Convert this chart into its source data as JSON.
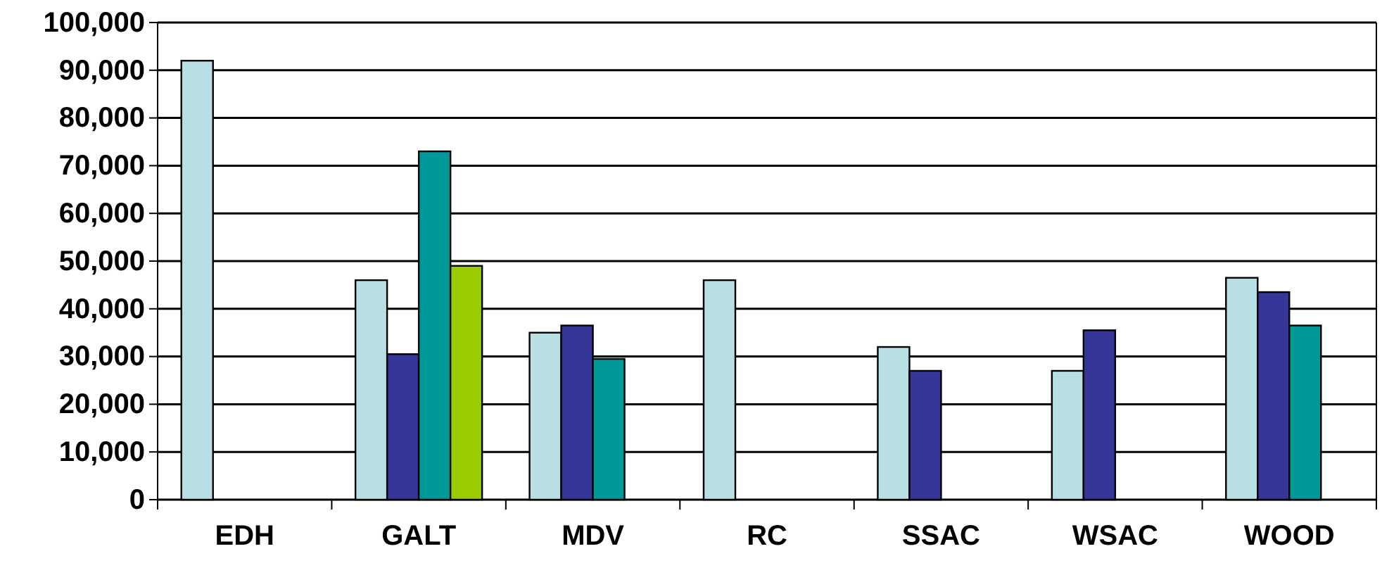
{
  "chart_data": {
    "type": "bar",
    "categories": [
      "EDH",
      "GALT",
      "MDV",
      "RC",
      "SSAC",
      "WSAC",
      "WOOD"
    ],
    "series": [
      {
        "color": "#b8e0e4",
        "values": [
          92000,
          46000,
          35000,
          46000,
          32000,
          27000,
          46500
        ]
      },
      {
        "color": "#363699",
        "values": [
          null,
          30500,
          36500,
          null,
          27000,
          35500,
          43500
        ]
      },
      {
        "color": "#009999",
        "values": [
          null,
          73000,
          29500,
          null,
          null,
          null,
          36500
        ]
      },
      {
        "color": "#99cc00",
        "values": [
          null,
          49000,
          null,
          null,
          null,
          null,
          null
        ]
      }
    ],
    "ylim": [
      0,
      100000
    ],
    "yticks": [
      {
        "value": 0,
        "label": "0"
      },
      {
        "value": 10000,
        "label": "10,000"
      },
      {
        "value": 20000,
        "label": "20,000"
      },
      {
        "value": 30000,
        "label": "30,000"
      },
      {
        "value": 40000,
        "label": "40,000"
      },
      {
        "value": 50000,
        "label": "50,000"
      },
      {
        "value": 60000,
        "label": "60,000"
      },
      {
        "value": 70000,
        "label": "70,000"
      },
      {
        "value": 80000,
        "label": "80,000"
      },
      {
        "value": 90000,
        "label": "90,000"
      },
      {
        "value": 100000,
        "label": "100,000"
      }
    ],
    "grid": "y"
  }
}
